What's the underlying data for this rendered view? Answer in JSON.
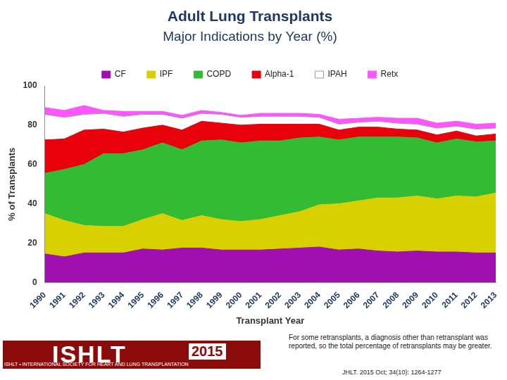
{
  "chart_data": {
    "type": "area",
    "title": "Adult Lung Transplants",
    "subtitle": "Major Indications by Year (%)",
    "x_label": "Transplant Year",
    "y_label": "% of Transplants",
    "categories": [
      "1990",
      "1991",
      "1992",
      "1993",
      "1994",
      "1995",
      "1996",
      "1997",
      "1998",
      "1999",
      "2000",
      "2001",
      "2002",
      "2003",
      "2004",
      "2005",
      "2006",
      "2007",
      "2008",
      "2009",
      "2010",
      "2011",
      "2012",
      "2013"
    ],
    "series": [
      {
        "name": "CF",
        "color": "#a010b0",
        "values": [
          14.5,
          13,
          15,
          15,
          15,
          17,
          16.5,
          17.5,
          17.5,
          16.5,
          16.5,
          16.5,
          17,
          17.5,
          18,
          16.5,
          17,
          16,
          15.5,
          16,
          15.5,
          15.5,
          15,
          15
        ]
      },
      {
        "name": "IPF",
        "color": "#d8d000",
        "values": [
          20.5,
          18.5,
          14,
          13.5,
          13.5,
          15,
          18.5,
          14,
          16.5,
          15.5,
          14.5,
          15.5,
          17,
          18.5,
          21.5,
          23.5,
          24.5,
          27,
          27.5,
          28,
          27,
          28.5,
          28.5,
          30.5
        ]
      },
      {
        "name": "COPD",
        "color": "#33bb33",
        "values": [
          20.5,
          26,
          31,
          37,
          37,
          35.5,
          36,
          36,
          38,
          40.5,
          40,
          40,
          38,
          37.5,
          34.5,
          32.5,
          32.5,
          31,
          31,
          29.5,
          28.5,
          29,
          28,
          26.5
        ]
      },
      {
        "name": "Alpha-1",
        "color": "#e8000b",
        "values": [
          17,
          15.5,
          17.5,
          12.5,
          11,
          11,
          9,
          10,
          10,
          8.5,
          9,
          8.5,
          8.5,
          7,
          6.5,
          5,
          5,
          5,
          4,
          4,
          4,
          4,
          3,
          3.5
        ]
      },
      {
        "name": "IPAH",
        "color": "#ffffff",
        "values": [
          13,
          11,
          8,
          8,
          8,
          7,
          5.5,
          6,
          4,
          4.5,
          4,
          4,
          4,
          4,
          3.5,
          3,
          2.5,
          3,
          3,
          3,
          3.5,
          2.5,
          3.5,
          3
        ]
      },
      {
        "name": "Retx",
        "color": "#ff55ff",
        "values": [
          3.5,
          3.5,
          4.5,
          1.5,
          2.5,
          1.5,
          1.5,
          1.5,
          1.5,
          1,
          1,
          1.5,
          1.5,
          1.5,
          1.5,
          2.5,
          2,
          2,
          2.5,
          3,
          2.5,
          2.5,
          2.5,
          2.5
        ]
      }
    ],
    "ylim": [
      0,
      100
    ],
    "yticks": [
      0,
      20,
      40,
      60,
      80,
      100
    ],
    "grid": false,
    "stacked": true,
    "legend": "top"
  },
  "footer": {
    "logo": "ISHLT",
    "logo_caption": "ISHLT • INTERNATIONAL SOCIETY FOR HEART AND LUNG TRANSPLANTATION",
    "year": "2015",
    "note": "For some retransplants, a diagnosis other than retransplant was reported, so the total percentage of retransplants may be greater.",
    "citation": "JHLT. 2015 Oct; 34(10): 1264-1277"
  }
}
